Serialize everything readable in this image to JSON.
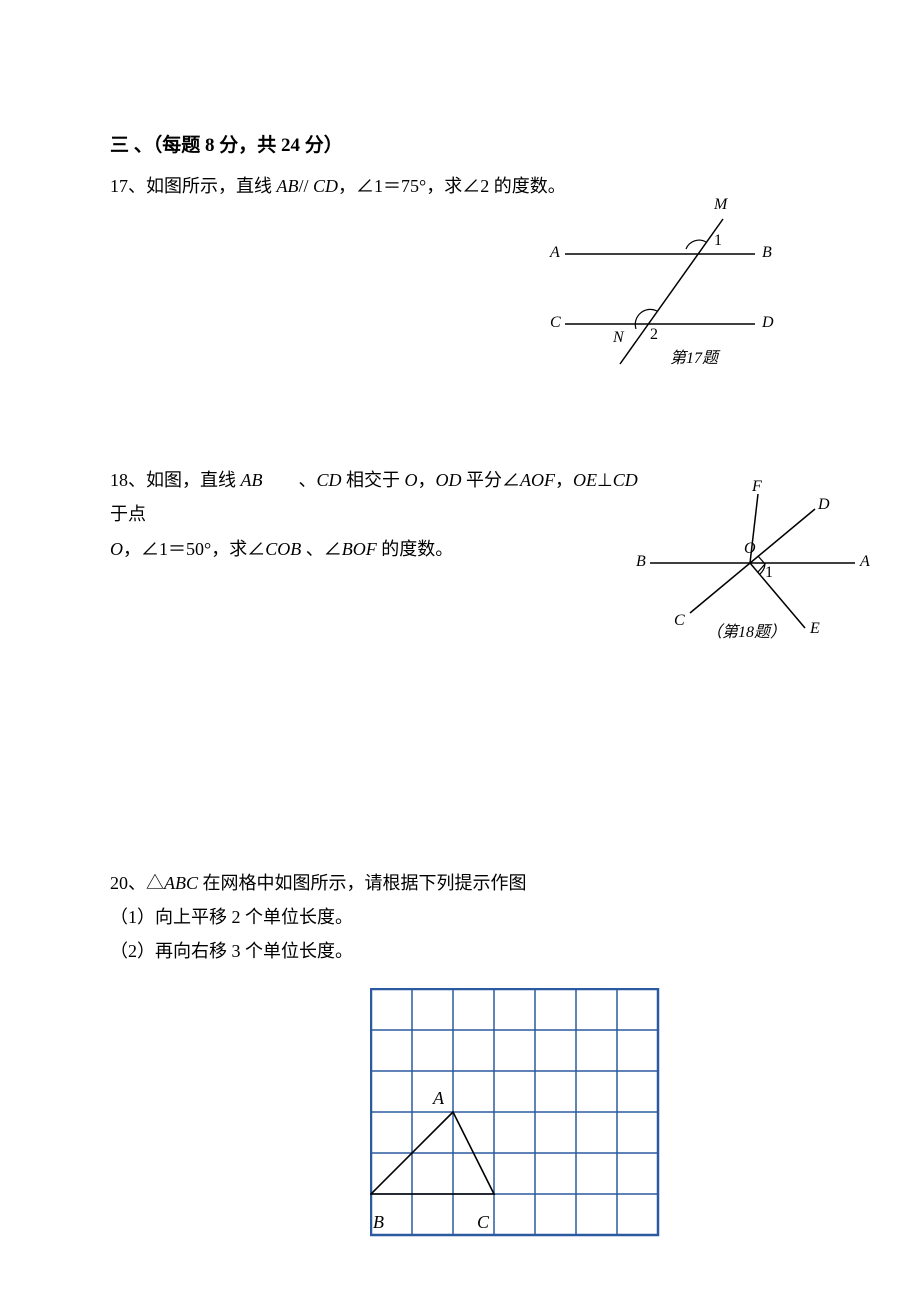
{
  "section": {
    "title": "三 、（每题 8 分，共 24 分）"
  },
  "p17": {
    "num": "17、",
    "text_1": "如图所示，直线 ",
    "ab": "AB",
    "par": "// ",
    "cd": "CD",
    "text_2": "，∠1＝75°，求∠2 的度数。",
    "labels": {
      "M": "M",
      "A": "A",
      "B": "B",
      "C": "C",
      "D": "D",
      "N": "N",
      "a1": "1",
      "a2": "2"
    },
    "caption": "第17题",
    "colors": {
      "line": "#000000"
    }
  },
  "p18": {
    "num": "18、",
    "text_1": "如图，直线 ",
    "ab": "AB",
    "gap": "　　",
    "text_2": "、",
    "cd": "CD",
    "text_3": " 相交于 ",
    "o1": "O",
    "text_4": "，",
    "od": "OD",
    "text_5": " 平分∠",
    "aof": "AOF",
    "text_6": "，",
    "oe": "OE",
    "text_7": "⊥",
    "cd2": "CD",
    "text_8": " 于点",
    "o2": "O",
    "text_9": "，∠1＝50°，求∠",
    "cob": "COB",
    "text_10": " 、∠",
    "bof": "BOF",
    "text_11": " 的度数。",
    "labels": {
      "F": "F",
      "D": "D",
      "B": "B",
      "O": "O",
      "A": "A",
      "C": "C",
      "E": "E",
      "a1": "1"
    },
    "caption": "（第18题）",
    "colors": {
      "line": "#000000"
    }
  },
  "p20": {
    "num": "20、",
    "text_1": "△",
    "abc": "ABC",
    "text_2": " 在网格中如图所示，请根据下列提示作图",
    "s1": "（1）向上平移 2 个单位长度。",
    "s2": "（2）再向右移 3 个单位长度。",
    "labels": {
      "A": "A",
      "B": "B",
      "C": "C"
    },
    "grid": {
      "cols": 7,
      "rows": 6,
      "cell": 41,
      "line": "#2b5aa0",
      "width": 1.5
    }
  }
}
